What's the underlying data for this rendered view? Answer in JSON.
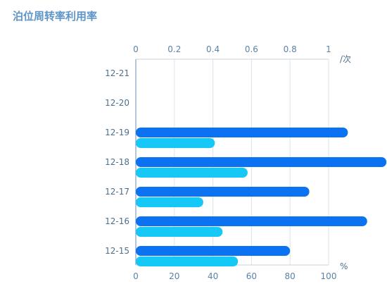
{
  "title": "泊位周转率利用率",
  "chart_data": {
    "type": "bar",
    "orientation": "horizontal",
    "title": "泊位周转率利用率",
    "categories": [
      "12-21",
      "12-20",
      "12-19",
      "12-18",
      "12-17",
      "12-16",
      "12-15"
    ],
    "top_axis": {
      "unit": "/次",
      "range": [
        0,
        1
      ],
      "ticks": [
        "0",
        "0.2",
        "0.4",
        "0.6",
        "0.8",
        "1"
      ]
    },
    "bottom_axis": {
      "unit": "%",
      "range": [
        0,
        100
      ],
      "ticks": [
        "0",
        "20",
        "40",
        "60",
        "80",
        "100"
      ]
    },
    "series": [
      {
        "axis": "top",
        "color": "#0b72f2",
        "values": [
          null,
          null,
          1.1,
          1.3,
          0.9,
          1.2,
          0.8
        ]
      },
      {
        "axis": "bottom",
        "color": "#16c8f5",
        "values": [
          null,
          null,
          41,
          58,
          35,
          45,
          53
        ]
      }
    ],
    "grid": true
  }
}
